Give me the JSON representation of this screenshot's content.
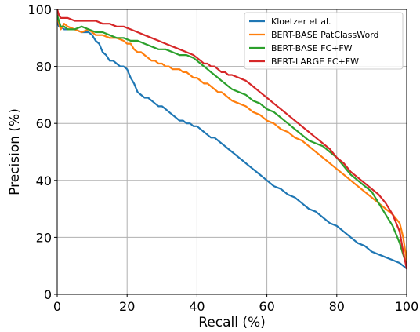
{
  "chart_data": {
    "type": "line",
    "title": "",
    "xlabel": "Recall (%)",
    "ylabel": "Precision (%)",
    "xlim": [
      0,
      100
    ],
    "ylim": [
      0,
      100
    ],
    "xticks": [
      0,
      20,
      40,
      60,
      80,
      100
    ],
    "yticks": [
      0,
      20,
      40,
      60,
      80,
      100
    ],
    "grid": true,
    "legend_position": "top-right",
    "series": [
      {
        "name": "Kloetzer et al.",
        "color": "#1f77b4",
        "x": [
          0,
          0.5,
          1,
          2,
          3,
          5,
          7,
          9,
          10,
          11,
          12,
          13,
          14,
          15,
          16,
          17,
          18,
          19,
          20,
          21,
          22,
          23,
          24,
          25,
          26,
          27,
          28,
          29,
          30,
          31,
          32,
          33,
          34,
          35,
          36,
          37,
          38,
          39,
          40,
          41,
          42,
          43,
          44,
          45,
          46,
          47,
          48,
          49,
          50,
          51,
          52,
          53,
          54,
          55,
          56,
          57,
          58,
          59,
          60,
          62,
          64,
          66,
          68,
          70,
          72,
          74,
          76,
          78,
          80,
          82,
          84,
          86,
          88,
          90,
          92,
          94,
          96,
          98,
          99,
          100
        ],
        "y": [
          96,
          94,
          94,
          93,
          93,
          93,
          92,
          92,
          91,
          89,
          88,
          85,
          84,
          82,
          82,
          81,
          80,
          80,
          79,
          76,
          74,
          71,
          70,
          69,
          69,
          68,
          67,
          66,
          66,
          65,
          64,
          63,
          62,
          61,
          61,
          60,
          60,
          59,
          59,
          58,
          57,
          56,
          55,
          55,
          54,
          53,
          52,
          51,
          50,
          49,
          48,
          47,
          46,
          45,
          44,
          43,
          42,
          41,
          40,
          38,
          37,
          35,
          34,
          32,
          30,
          29,
          27,
          25,
          24,
          22,
          20,
          18,
          17,
          15,
          14,
          13,
          12,
          11,
          10,
          9
        ]
      },
      {
        "name": "BERT-BASE PatClassWord",
        "color": "#ff7f0e",
        "x": [
          0,
          0.5,
          1,
          2,
          3,
          5,
          7,
          9,
          11,
          13,
          15,
          17,
          19,
          20,
          21,
          22,
          23,
          24,
          25,
          26,
          27,
          28,
          29,
          30,
          31,
          32,
          33,
          34,
          35,
          36,
          37,
          38,
          39,
          40,
          41,
          42,
          43,
          44,
          45,
          46,
          47,
          48,
          49,
          50,
          52,
          54,
          56,
          58,
          60,
          62,
          64,
          66,
          68,
          70,
          72,
          74,
          76,
          78,
          80,
          82,
          84,
          86,
          88,
          90,
          92,
          94,
          96,
          98,
          99,
          100
        ],
        "y": [
          98,
          95,
          93,
          95,
          94,
          93,
          92,
          93,
          91,
          91,
          90,
          90,
          89,
          88,
          88,
          86,
          85,
          85,
          84,
          83,
          82,
          82,
          81,
          81,
          80,
          80,
          79,
          79,
          79,
          78,
          78,
          77,
          76,
          76,
          75,
          74,
          74,
          73,
          72,
          71,
          71,
          70,
          69,
          68,
          67,
          66,
          64,
          63,
          61,
          60,
          58,
          57,
          55,
          54,
          52,
          50,
          48,
          46,
          44,
          42,
          40,
          38,
          36,
          34,
          32,
          30,
          28,
          25,
          20,
          12
        ]
      },
      {
        "name": "BERT-BASE FC+FW",
        "color": "#2ca02c",
        "x": [
          0,
          0.5,
          1,
          2,
          3,
          5,
          7,
          9,
          11,
          13,
          15,
          17,
          19,
          21,
          23,
          25,
          27,
          29,
          31,
          33,
          35,
          37,
          39,
          40,
          41,
          42,
          43,
          44,
          45,
          46,
          47,
          48,
          49,
          50,
          52,
          54,
          56,
          58,
          60,
          62,
          64,
          66,
          68,
          70,
          72,
          74,
          76,
          78,
          80,
          82,
          84,
          86,
          88,
          90,
          92,
          94,
          96,
          98,
          99,
          100
        ],
        "y": [
          98,
          96,
          94,
          94,
          93,
          93,
          94,
          93,
          92,
          92,
          91,
          90,
          90,
          89,
          89,
          88,
          87,
          86,
          86,
          85,
          84,
          84,
          83,
          82,
          81,
          80,
          79,
          78,
          77,
          76,
          75,
          74,
          73,
          72,
          71,
          70,
          68,
          67,
          65,
          64,
          62,
          60,
          58,
          56,
          54,
          53,
          52,
          50,
          48,
          45,
          42,
          40,
          38,
          36,
          32,
          28,
          24,
          18,
          14,
          10
        ]
      },
      {
        "name": "BERT-LARGE FC+FW",
        "color": "#d62728",
        "x": [
          0,
          0.5,
          1,
          2,
          3,
          5,
          7,
          9,
          11,
          13,
          15,
          17,
          19,
          21,
          23,
          25,
          27,
          29,
          31,
          33,
          35,
          37,
          39,
          40,
          41,
          42,
          43,
          44,
          45,
          46,
          47,
          48,
          49,
          50,
          52,
          54,
          56,
          58,
          60,
          62,
          64,
          66,
          68,
          70,
          72,
          74,
          76,
          78,
          80,
          82,
          84,
          86,
          88,
          90,
          92,
          94,
          96,
          98,
          99,
          100
        ],
        "y": [
          100,
          98,
          97,
          97,
          97,
          96,
          96,
          96,
          96,
          95,
          95,
          94,
          94,
          93,
          92,
          91,
          90,
          89,
          88,
          87,
          86,
          85,
          84,
          83,
          82,
          81,
          81,
          80,
          80,
          79,
          78,
          78,
          77,
          77,
          76,
          75,
          73,
          71,
          69,
          67,
          65,
          63,
          61,
          59,
          57,
          55,
          53,
          51,
          48,
          46,
          43,
          41,
          39,
          37,
          35,
          32,
          28,
          22,
          15,
          9
        ]
      }
    ]
  }
}
